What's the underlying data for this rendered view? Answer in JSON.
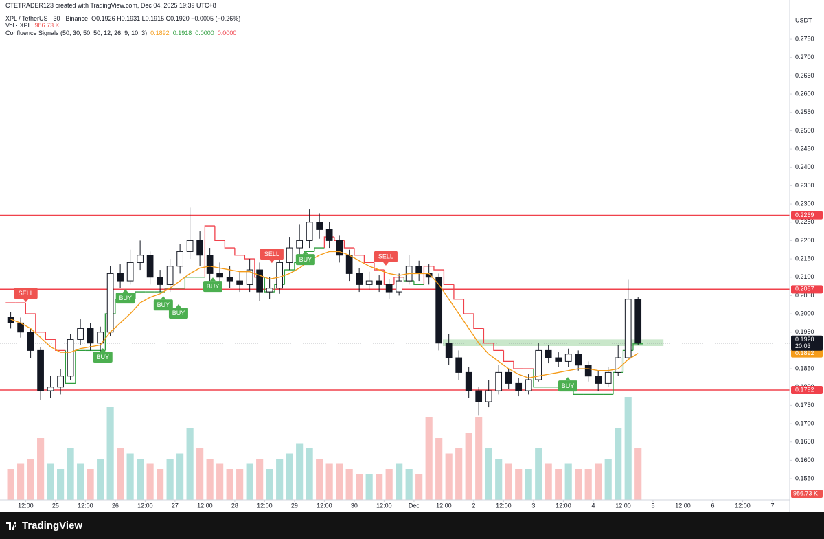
{
  "header": {
    "credit": "CTETRADER123 created with TradingView.com, Dec 04, 2025 19:39 UTC+8",
    "symbol": "XPL / TetherUS · 30 · Binance",
    "ohlc": "O0.1926 H0.1931 L0.1915 C0.1920 −0.0005 (−0.26%)",
    "vol_name": "Vol · XPL",
    "vol_value": "986.73 K",
    "indicator": "Confluence Signals (50, 30, 50, 50, 12, 26, 9, 10, 3)",
    "indicator_values": [
      "0.1892",
      "0.1918",
      "0.0000",
      "0.0000"
    ]
  },
  "footer": {
    "brand": "TradingView"
  },
  "chart_data": {
    "type": "candlestick",
    "currency": "USDT",
    "up_color": "#ffffff",
    "down_color": "#131722",
    "volume_up_color": "#26a69a",
    "volume_down_color": "#ef5350",
    "x": [
      6,
      10,
      14,
      18,
      22,
      26,
      30,
      34,
      38,
      42,
      46,
      50,
      54,
      58,
      62,
      66,
      70,
      74,
      78,
      82,
      86,
      90,
      94,
      98,
      102,
      106,
      110,
      114,
      118,
      122,
      126,
      130,
      134,
      138,
      142,
      146,
      150,
      154,
      158,
      162,
      166,
      170,
      174,
      178,
      182,
      186,
      190,
      194,
      198,
      202,
      206,
      210,
      214,
      218,
      222,
      226,
      230,
      234,
      238,
      242,
      246,
      250,
      254,
      258
    ],
    "open": [
      0.199,
      0.1975,
      0.195,
      0.19,
      0.179,
      0.18,
      0.183,
      0.193,
      0.196,
      0.192,
      0.195,
      0.211,
      0.209,
      0.214,
      0.216,
      0.21,
      0.208,
      0.213,
      0.217,
      0.22,
      0.216,
      0.211,
      0.21,
      0.209,
      0.208,
      0.212,
      0.206,
      0.207,
      0.214,
      0.218,
      0.22,
      0.225,
      0.223,
      0.22,
      0.216,
      0.211,
      0.208,
      0.209,
      0.208,
      0.206,
      0.209,
      0.213,
      0.211,
      0.21,
      0.192,
      0.188,
      0.184,
      0.179,
      0.176,
      0.179,
      0.184,
      0.181,
      0.179,
      0.182,
      0.19,
      0.188,
      0.187,
      0.189,
      0.186,
      0.183,
      0.181,
      0.184,
      0.188,
      0.204
    ],
    "high": [
      0.2005,
      0.199,
      0.196,
      0.191,
      0.183,
      0.185,
      0.1945,
      0.1985,
      0.1975,
      0.1965,
      0.213,
      0.2135,
      0.2175,
      0.22,
      0.217,
      0.212,
      0.215,
      0.219,
      0.229,
      0.2225,
      0.218,
      0.214,
      0.213,
      0.2115,
      0.215,
      0.214,
      0.21,
      0.2165,
      0.221,
      0.2245,
      0.2285,
      0.2275,
      0.225,
      0.2215,
      0.2175,
      0.2125,
      0.2115,
      0.2105,
      0.2095,
      0.211,
      0.216,
      0.2145,
      0.2135,
      0.211,
      0.1945,
      0.19,
      0.1855,
      0.18,
      0.182,
      0.186,
      0.185,
      0.1825,
      0.1835,
      0.192,
      0.1915,
      0.1895,
      0.1905,
      0.19,
      0.187,
      0.1845,
      0.1855,
      0.1915,
      0.2093,
      0.2045
    ],
    "low": [
      0.196,
      0.1935,
      0.188,
      0.1765,
      0.177,
      0.178,
      0.182,
      0.1915,
      0.19,
      0.1895,
      0.194,
      0.207,
      0.208,
      0.212,
      0.208,
      0.206,
      0.206,
      0.211,
      0.215,
      0.213,
      0.209,
      0.207,
      0.207,
      0.206,
      0.206,
      0.2035,
      0.204,
      0.2055,
      0.212,
      0.216,
      0.218,
      0.2205,
      0.218,
      0.214,
      0.209,
      0.206,
      0.2065,
      0.206,
      0.204,
      0.205,
      0.208,
      0.209,
      0.208,
      0.19,
      0.186,
      0.182,
      0.177,
      0.1722,
      0.1745,
      0.178,
      0.1795,
      0.1775,
      0.178,
      0.1815,
      0.1865,
      0.1855,
      0.1855,
      0.1845,
      0.1815,
      0.179,
      0.18,
      0.183,
      0.1875,
      0.1915
    ],
    "close": [
      0.1975,
      0.195,
      0.19,
      0.179,
      0.18,
      0.183,
      0.193,
      0.196,
      0.192,
      0.195,
      0.211,
      0.209,
      0.214,
      0.216,
      0.21,
      0.208,
      0.213,
      0.217,
      0.22,
      0.216,
      0.211,
      0.21,
      0.209,
      0.208,
      0.212,
      0.206,
      0.207,
      0.214,
      0.218,
      0.22,
      0.225,
      0.223,
      0.22,
      0.216,
      0.211,
      0.208,
      0.209,
      0.208,
      0.206,
      0.209,
      0.213,
      0.211,
      0.21,
      0.192,
      0.188,
      0.184,
      0.179,
      0.176,
      0.179,
      0.184,
      0.181,
      0.179,
      0.182,
      0.19,
      0.188,
      0.187,
      0.189,
      0.186,
      0.183,
      0.181,
      0.184,
      0.188,
      0.204,
      0.192
    ],
    "volume": [
      3000,
      3500,
      4000,
      6000,
      3500,
      3000,
      5000,
      3500,
      3000,
      4000,
      9000,
      5000,
      4500,
      4000,
      3500,
      3000,
      4000,
      4500,
      7000,
      5000,
      4000,
      3500,
      3000,
      3000,
      3500,
      4000,
      3000,
      4000,
      4500,
      5500,
      5000,
      4000,
      3500,
      3500,
      3000,
      2500,
      2500,
      2500,
      3000,
      3500,
      3000,
      2500,
      8000,
      6000,
      4500,
      5000,
      6500,
      8000,
      5000,
      4000,
      3500,
      3000,
      3000,
      5000,
      3500,
      3000,
      3500,
      3000,
      3000,
      3500,
      4000,
      7000,
      10000,
      5000
    ],
    "volume_label": "986.73 K",
    "ma": {
      "color": "#f59c1a",
      "values": [
        0.1985,
        0.1975,
        0.196,
        0.1935,
        0.191,
        0.1895,
        0.1895,
        0.1905,
        0.191,
        0.1915,
        0.195,
        0.1975,
        0.2,
        0.203,
        0.2045,
        0.2055,
        0.207,
        0.209,
        0.211,
        0.2125,
        0.213,
        0.2125,
        0.212,
        0.2115,
        0.2115,
        0.2105,
        0.2095,
        0.21,
        0.211,
        0.2125,
        0.2145,
        0.216,
        0.217,
        0.217,
        0.216,
        0.2145,
        0.213,
        0.212,
        0.211,
        0.2105,
        0.211,
        0.211,
        0.211,
        0.208,
        0.204,
        0.2,
        0.196,
        0.192,
        0.189,
        0.187,
        0.185,
        0.1835,
        0.1825,
        0.183,
        0.1835,
        0.184,
        0.1845,
        0.185,
        0.185,
        0.1845,
        0.1845,
        0.185,
        0.1875,
        0.1892
      ]
    },
    "stop": {
      "up_color": "#2e9e3e",
      "down_color": "#f0414b",
      "values": [
        0.203,
        0.203,
        0.2,
        0.195,
        0.193,
        0.19,
        0.181,
        0.19,
        0.19,
        0.19,
        0.2,
        0.204,
        0.204,
        0.206,
        0.206,
        0.206,
        0.207,
        0.207,
        0.21,
        0.21,
        0.224,
        0.22,
        0.218,
        0.216,
        0.215,
        0.21,
        0.206,
        0.208,
        0.212,
        0.214,
        0.217,
        0.218,
        0.221,
        0.22,
        0.218,
        0.216,
        0.214,
        0.212,
        0.208,
        0.21,
        0.209,
        0.208,
        0.213,
        0.212,
        0.208,
        0.204,
        0.2,
        0.196,
        0.192,
        0.19,
        0.187,
        0.185,
        0.185,
        0.18,
        0.18,
        0.18,
        0.18,
        0.178,
        0.178,
        0.178,
        0.178,
        0.184,
        0.19,
        0.1918
      ]
    },
    "levels": [
      0.2269,
      0.2067,
      0.1792
    ],
    "level_color": "#f0414b",
    "zone": {
      "from": 0.1912,
      "to": 0.193,
      "x": [
        179.6,
        268.2
      ],
      "color": "#4caf50"
    },
    "last_price": {
      "value": 0.192,
      "label": "0.1920"
    },
    "countdown": "20:03",
    "signals": [
      {
        "text": "SELL",
        "x": 12.1,
        "y": 0.2056
      },
      {
        "text": "BUY",
        "x": 43,
        "y": 0.1882
      },
      {
        "text": "BUY",
        "x": 52.1,
        "y": 0.2043
      },
      {
        "text": "BUY",
        "x": 67.3,
        "y": 0.2024
      },
      {
        "text": "BUY",
        "x": 73.4,
        "y": 0.2002
      },
      {
        "text": "BUY",
        "x": 87.2,
        "y": 0.2075
      },
      {
        "text": "SELL",
        "x": 110.9,
        "y": 0.2163
      },
      {
        "text": "BUY",
        "x": 124.4,
        "y": 0.2148
      },
      {
        "text": "SELL",
        "x": 156.7,
        "y": 0.2156
      },
      {
        "text": "BUY",
        "x": 229.8,
        "y": 0.1803
      }
    ],
    "buy_color": "#4caf50",
    "sell_color": "#ef5350",
    "xlim": [
      1.7,
      318.9
    ],
    "ylim": [
      0.1492,
      0.2857
    ],
    "yticks": [
      {
        "value": 0.275,
        "label": "0.2750"
      },
      {
        "value": 0.27,
        "label": "0.2700"
      },
      {
        "value": 0.265,
        "label": "0.2650"
      },
      {
        "value": 0.26,
        "label": "0.2600"
      },
      {
        "value": 0.255,
        "label": "0.2550"
      },
      {
        "value": 0.25,
        "label": "0.2500"
      },
      {
        "value": 0.245,
        "label": "0.2450"
      },
      {
        "value": 0.24,
        "label": "0.2400"
      },
      {
        "value": 0.235,
        "label": "0.2350"
      },
      {
        "value": 0.23,
        "label": "0.2300"
      },
      {
        "value": 0.225,
        "label": "0.2250"
      },
      {
        "value": 0.22,
        "label": "0.2200"
      },
      {
        "value": 0.215,
        "label": "0.2150"
      },
      {
        "value": 0.21,
        "label": "0.2100"
      },
      {
        "value": 0.205,
        "label": "0.2050"
      },
      {
        "value": 0.2,
        "label": "0.2000"
      },
      {
        "value": 0.195,
        "label": "0.1950"
      },
      {
        "value": 0.19,
        "label": "0.1900"
      },
      {
        "value": 0.185,
        "label": "0.1850"
      },
      {
        "value": 0.18,
        "label": "0.1800"
      },
      {
        "value": 0.175,
        "label": "0.1750"
      },
      {
        "value": 0.17,
        "label": "0.1700"
      },
      {
        "value": 0.165,
        "label": "0.1650"
      },
      {
        "value": 0.16,
        "label": "0.1600"
      },
      {
        "value": 0.155,
        "label": "0.1550"
      }
    ],
    "xticks": [
      {
        "value": 12,
        "label": "12:00"
      },
      {
        "value": 24,
        "label": "25"
      },
      {
        "value": 36,
        "label": "12:00"
      },
      {
        "value": 48,
        "label": "26"
      },
      {
        "value": 60,
        "label": "12:00"
      },
      {
        "value": 72,
        "label": "27"
      },
      {
        "value": 84,
        "label": "12:00"
      },
      {
        "value": 96,
        "label": "28"
      },
      {
        "value": 108,
        "label": "12:00"
      },
      {
        "value": 120,
        "label": "29"
      },
      {
        "value": 132,
        "label": "12:00"
      },
      {
        "value": 144,
        "label": "30"
      },
      {
        "value": 156,
        "label": "12:00"
      },
      {
        "value": 168,
        "label": "Dec"
      },
      {
        "value": 180,
        "label": "12:00"
      },
      {
        "value": 192,
        "label": "2"
      },
      {
        "value": 204,
        "label": "12:00"
      },
      {
        "value": 216,
        "label": "3"
      },
      {
        "value": 228,
        "label": "12:00"
      },
      {
        "value": 240,
        "label": "4"
      },
      {
        "value": 252,
        "label": "12:00"
      },
      {
        "value": 264,
        "label": "5"
      },
      {
        "value": 276,
        "label": "12:00"
      },
      {
        "value": 288,
        "label": "6"
      },
      {
        "value": 300,
        "label": "12:00"
      },
      {
        "value": 312,
        "label": "7"
      }
    ]
  }
}
